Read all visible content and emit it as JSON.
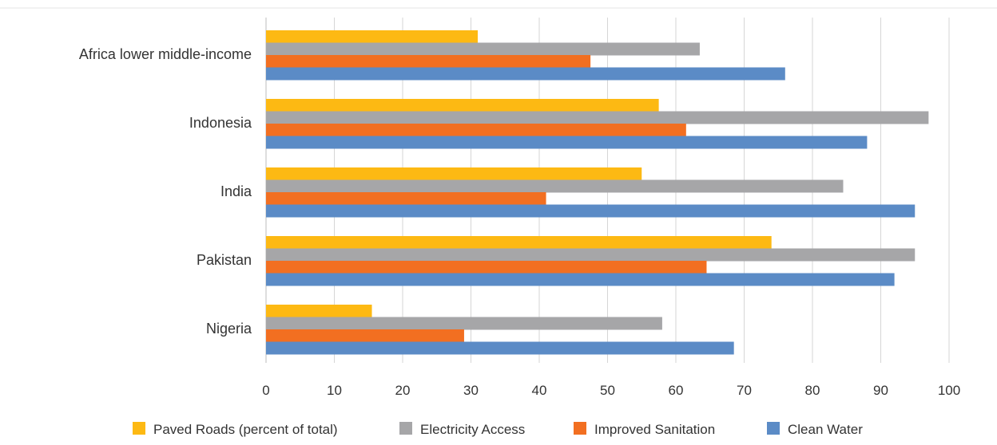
{
  "chart_data": {
    "type": "bar",
    "orientation": "horizontal",
    "categories": [
      "Africa lower middle-income",
      "Indonesia",
      "India",
      "Pakistan",
      "Nigeria"
    ],
    "series": [
      {
        "name": "Paved Roads (percent of total)",
        "color": "#FDB913",
        "values": [
          31,
          57.5,
          55,
          74,
          15.5
        ]
      },
      {
        "name": "Electricity Access",
        "color": "#A6A6A8",
        "values": [
          63.5,
          97,
          84.5,
          95,
          58
        ]
      },
      {
        "name": "Improved Sanitation",
        "color": "#F26F21",
        "values": [
          47.5,
          61.5,
          41,
          64.5,
          29
        ]
      },
      {
        "name": "Clean Water",
        "color": "#5B8BC6",
        "values": [
          76,
          88,
          95,
          92,
          68.5
        ]
      }
    ],
    "xlim": [
      0,
      100
    ],
    "x_ticks": [
      "0",
      "10",
      "20",
      "30",
      "40",
      "50",
      "60",
      "70",
      "80",
      "90",
      "100"
    ],
    "grid": "vertical",
    "legend_position": "bottom",
    "title": "",
    "xlabel": "",
    "ylabel": ""
  }
}
